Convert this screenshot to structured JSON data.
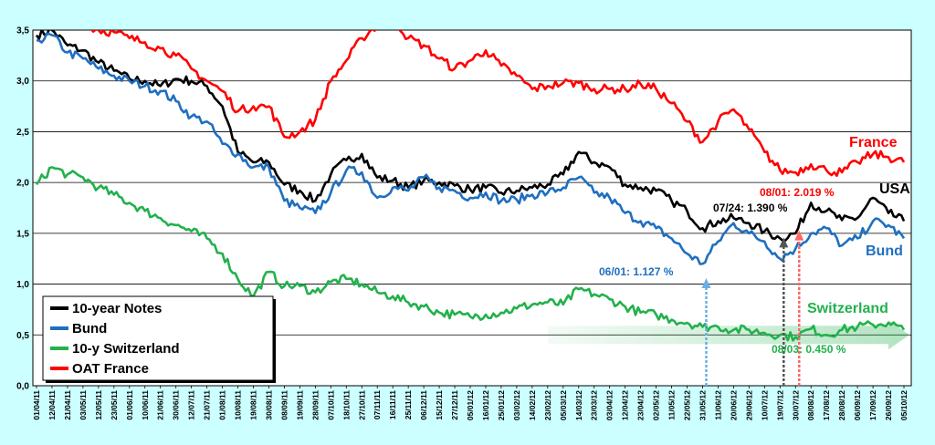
{
  "chart_data": {
    "type": "line",
    "title": "",
    "xlabel": "",
    "ylabel": "",
    "ylim": [
      0,
      3.5
    ],
    "y_ticks": [
      "0,0",
      "0,5",
      "1,0",
      "1,5",
      "2,0",
      "2,5",
      "3,0",
      "3,5"
    ],
    "grid": "horizontal",
    "legend_position": "bottom-left",
    "x_tick_labels": [
      "01/04/11",
      "12/04/11",
      "21/04/11",
      "03/05/11",
      "12/05/11",
      "23/05/11",
      "01/06/11",
      "10/06/11",
      "21/06/11",
      "30/06/11",
      "12/07/11",
      "21/07/11",
      "01/08/11",
      "10/08/11",
      "19/08/11",
      "30/08/11",
      "08/09/11",
      "19/09/11",
      "28/09/11",
      "07/10/11",
      "18/10/11",
      "27/10/11",
      "07/11/11",
      "16/11/11",
      "25/11/11",
      "06/12/11",
      "15/12/11",
      "27/12/11",
      "05/01/12",
      "16/01/12",
      "25/01/12",
      "03/02/12",
      "14/02/12",
      "23/02/12",
      "05/03/12",
      "14/03/12",
      "23/03/12",
      "03/04/12",
      "12/04/12",
      "23/04/12",
      "02/05/12",
      "11/05/12",
      "22/05/12",
      "31/05/12",
      "11/06/12",
      "20/06/12",
      "29/06/12",
      "10/07/12",
      "19/07/12",
      "30/07/12",
      "08/08/12",
      "17/08/12",
      "28/08/12",
      "06/09/12",
      "17/09/12",
      "26/09/12",
      "05/10/12"
    ],
    "series": [
      {
        "name": "10-year Notes",
        "color": "#000000",
        "end_label": "USA",
        "values": [
          3.45,
          3.5,
          3.35,
          3.3,
          3.18,
          3.1,
          3.02,
          3.0,
          2.95,
          3.02,
          3.0,
          2.95,
          2.75,
          2.3,
          2.2,
          2.2,
          1.98,
          1.92,
          1.82,
          2.08,
          2.22,
          2.28,
          2.05,
          2.02,
          1.95,
          2.02,
          2.0,
          1.97,
          1.93,
          1.95,
          1.9,
          1.92,
          1.95,
          1.98,
          2.08,
          2.3,
          2.2,
          2.15,
          1.98,
          1.95,
          1.92,
          1.82,
          1.72,
          1.55,
          1.62,
          1.65,
          1.6,
          1.52,
          1.45,
          1.5,
          1.8,
          1.72,
          1.63,
          1.65,
          1.85,
          1.7,
          1.62
        ]
      },
      {
        "name": "Bund",
        "color": "#1f6fc0",
        "end_label": "Bund",
        "values": [
          3.4,
          3.45,
          3.28,
          3.22,
          3.12,
          3.05,
          3.0,
          2.95,
          2.9,
          2.8,
          2.65,
          2.6,
          2.38,
          2.28,
          2.15,
          2.15,
          1.82,
          1.75,
          1.7,
          1.9,
          2.12,
          2.1,
          1.85,
          1.95,
          1.92,
          2.05,
          1.95,
          1.92,
          1.85,
          1.9,
          1.82,
          1.83,
          1.88,
          1.9,
          1.95,
          2.05,
          1.9,
          1.85,
          1.7,
          1.62,
          1.55,
          1.45,
          1.3,
          1.2,
          1.42,
          1.6,
          1.5,
          1.42,
          1.25,
          1.35,
          1.5,
          1.55,
          1.38,
          1.45,
          1.62,
          1.58,
          1.45
        ]
      },
      {
        "name": "10-y Switzerland",
        "color": "#22b14c",
        "end_label": "Switzerland",
        "values": [
          1.98,
          2.15,
          2.08,
          2.05,
          1.95,
          1.88,
          1.8,
          1.72,
          1.65,
          1.58,
          1.52,
          1.45,
          1.3,
          1.05,
          0.88,
          1.12,
          0.98,
          0.98,
          0.92,
          1.02,
          1.05,
          1.0,
          0.92,
          0.88,
          0.82,
          0.78,
          0.72,
          0.7,
          0.68,
          0.7,
          0.72,
          0.76,
          0.8,
          0.82,
          0.8,
          0.95,
          0.9,
          0.85,
          0.78,
          0.72,
          0.7,
          0.65,
          0.62,
          0.58,
          0.58,
          0.55,
          0.55,
          0.52,
          0.5,
          0.48,
          0.56,
          0.5,
          0.55,
          0.58,
          0.6,
          0.62,
          0.55
        ]
      },
      {
        "name": "OAT France",
        "color": "#ff0000",
        "end_label": "France",
        "values": [
          3.6,
          3.62,
          3.58,
          3.55,
          3.5,
          3.48,
          3.42,
          3.38,
          3.32,
          3.25,
          3.12,
          3.0,
          2.9,
          2.7,
          2.75,
          2.75,
          2.45,
          2.5,
          2.62,
          3.0,
          3.2,
          3.42,
          3.55,
          3.62,
          3.42,
          3.35,
          3.22,
          3.12,
          3.2,
          3.3,
          3.15,
          3.05,
          2.92,
          2.95,
          2.98,
          2.98,
          2.92,
          2.92,
          2.92,
          2.97,
          2.92,
          2.78,
          2.6,
          2.4,
          2.6,
          2.72,
          2.52,
          2.3,
          2.12,
          2.1,
          2.18,
          2.12,
          2.1,
          2.2,
          2.28,
          2.25,
          2.2
        ]
      }
    ],
    "annotations": [
      {
        "text": "06/01: 1.127 %",
        "color": "#1f6fc0",
        "x_index": 43
      },
      {
        "text": "07/24: 1.390 %",
        "color": "#000000",
        "x_index": 48
      },
      {
        "text": "08/01: 2.019 %",
        "color": "#ff0000",
        "x_index": 49
      },
      {
        "text": "08/03: 0.450 %",
        "color": "#22b14c",
        "x_index": 49
      }
    ]
  }
}
